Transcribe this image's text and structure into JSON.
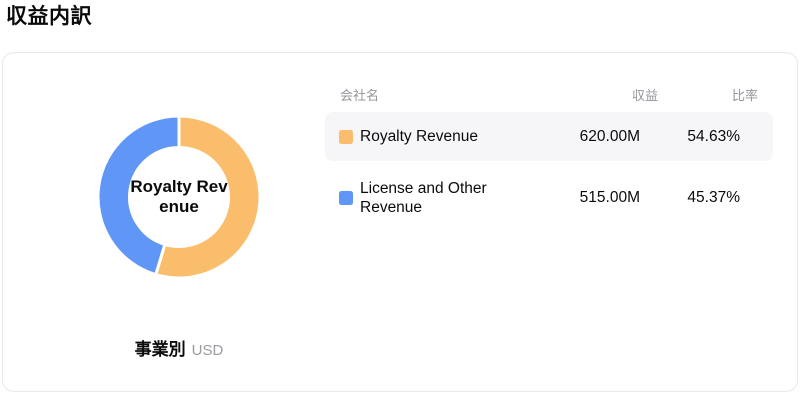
{
  "page_title": "収益内訳",
  "chart_data": {
    "type": "pie",
    "subtype": "donut",
    "title": "収益内訳",
    "center_label": "Royalty Revenue",
    "footer_label": "事業別",
    "currency": "USD",
    "categories": [
      "Royalty Revenue",
      "License and Other Revenue"
    ],
    "values": [
      620.0,
      515.0
    ],
    "value_unit": "M",
    "percentages": [
      54.63,
      45.37
    ],
    "colors": [
      "#F9BD6B",
      "#6096F5"
    ],
    "legend_position": "right-table",
    "segment_gap_stroke": "#ffffff"
  },
  "table": {
    "headers": [
      "会社名",
      "収益",
      "比率"
    ],
    "rows": [
      {
        "name": "Royalty Revenue",
        "revenue": "620.00M",
        "ratio": "54.63%"
      },
      {
        "name": "License and Other Revenue",
        "revenue": "515.00M",
        "ratio": "45.37%"
      }
    ]
  }
}
